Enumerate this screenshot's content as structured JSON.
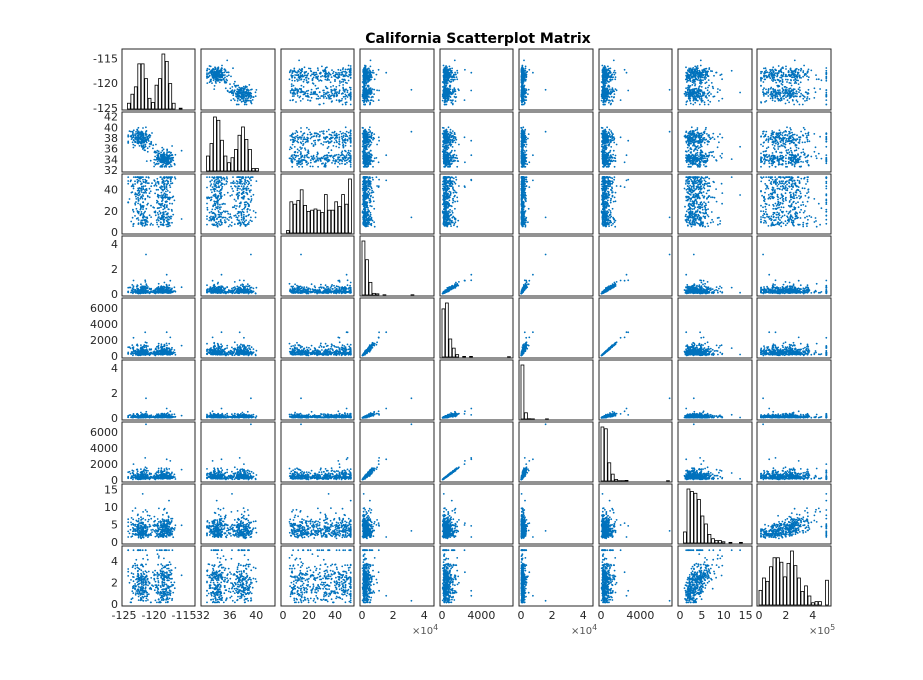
{
  "chart_data": {
    "type": "scatter",
    "title": "California Scatterplot Matrix",
    "n_variables": 9,
    "diagonal": "histogram",
    "point_color": "#0072BD",
    "hist_color": "#000000",
    "variables": [
      {
        "range": [
          -125,
          -113.5
        ]
      },
      {
        "range": [
          32,
          42.5
        ]
      },
      {
        "range": [
          0,
          53
        ]
      },
      {
        "range": [
          0,
          45000
        ],
        "multiplier": "×10^4"
      },
      {
        "range": [
          0,
          7000
        ]
      },
      {
        "range": [
          0,
          45000
        ],
        "multiplier": "×10^4"
      },
      {
        "range": [
          0,
          7000
        ]
      },
      {
        "range": [
          0,
          16
        ]
      },
      {
        "range": [
          0,
          520000
        ],
        "multiplier": "×10^5"
      }
    ],
    "row_ticks": [
      [
        {
          "v": -115,
          "label": "-115"
        },
        {
          "v": -120,
          "label": "-120"
        },
        {
          "v": -125,
          "label": "-125"
        }
      ],
      [
        {
          "v": 42,
          "label": "42"
        },
        {
          "v": 40,
          "label": "40"
        },
        {
          "v": 38,
          "label": "38"
        },
        {
          "v": 36,
          "label": "36"
        },
        {
          "v": 34,
          "label": "34"
        },
        {
          "v": 32,
          "label": "32"
        }
      ],
      [
        {
          "v": 40,
          "label": "40"
        },
        {
          "v": 20,
          "label": "20"
        },
        {
          "v": 0,
          "label": "0"
        }
      ],
      [
        {
          "v": 40000,
          "label": "4"
        },
        {
          "v": 20000,
          "label": "2"
        },
        {
          "v": 0,
          "label": "0"
        }
      ],
      [
        {
          "v": 6000,
          "label": "6000"
        },
        {
          "v": 4000,
          "label": "4000"
        },
        {
          "v": 2000,
          "label": "2000"
        },
        {
          "v": 0,
          "label": "0"
        }
      ],
      [
        {
          "v": 40000,
          "label": "4"
        },
        {
          "v": 20000,
          "label": "2"
        },
        {
          "v": 0,
          "label": "0"
        }
      ],
      [
        {
          "v": 6000,
          "label": "6000"
        },
        {
          "v": 4000,
          "label": "4000"
        },
        {
          "v": 2000,
          "label": "2000"
        },
        {
          "v": 0,
          "label": "0"
        }
      ],
      [
        {
          "v": 15,
          "label": "15"
        },
        {
          "v": 10,
          "label": "10"
        },
        {
          "v": 5,
          "label": "5"
        },
        {
          "v": 0,
          "label": "0"
        }
      ],
      [
        {
          "v": 400000,
          "label": "4"
        },
        {
          "v": 200000,
          "label": "2"
        },
        {
          "v": 0,
          "label": "0"
        }
      ]
    ],
    "col_ticks": [
      [
        {
          "v": -125,
          "label": "-125"
        },
        {
          "v": -120,
          "label": "-120"
        },
        {
          "v": -115,
          "label": "-115"
        }
      ],
      [
        {
          "v": 32,
          "label": "32"
        },
        {
          "v": 36,
          "label": "36"
        },
        {
          "v": 40,
          "label": "40"
        }
      ],
      [
        {
          "v": 0,
          "label": "0"
        },
        {
          "v": 20,
          "label": "20"
        },
        {
          "v": 40,
          "label": "40"
        }
      ],
      [
        {
          "v": 0,
          "label": "0"
        },
        {
          "v": 20000,
          "label": "2"
        },
        {
          "v": 40000,
          "label": "4"
        }
      ],
      [
        {
          "v": 0,
          "label": "0"
        },
        {
          "v": 4000,
          "label": "4000"
        }
      ],
      [
        {
          "v": 0,
          "label": "0"
        },
        {
          "v": 20000,
          "label": "2"
        },
        {
          "v": 40000,
          "label": "4"
        }
      ],
      [
        {
          "v": 0,
          "label": "0"
        },
        {
          "v": 4000,
          "label": "4000"
        }
      ],
      [
        {
          "v": 0,
          "label": "0"
        },
        {
          "v": 5,
          "label": "5"
        },
        {
          "v": 10,
          "label": "10"
        },
        {
          "v": 15,
          "label": "15"
        }
      ],
      [
        {
          "v": 0,
          "label": "0"
        },
        {
          "v": 200000,
          "label": "2"
        },
        {
          "v": 400000,
          "label": "4"
        }
      ]
    ],
    "multiplier_labels": [
      {
        "col": 3,
        "base": "×10",
        "exp": "4"
      },
      {
        "col": 5,
        "base": "×10",
        "exp": "4"
      },
      {
        "col": 8,
        "base": "×10",
        "exp": "5"
      }
    ]
  }
}
